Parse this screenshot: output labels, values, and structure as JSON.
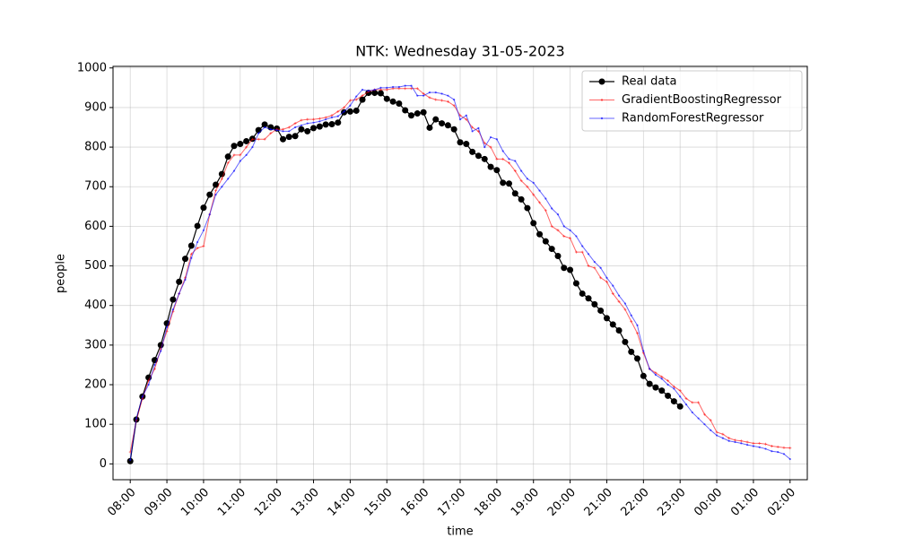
{
  "chart_data": {
    "type": "line",
    "title": "NTK: Wednesday 31-05-2023",
    "xlabel": "time",
    "ylabel": "people",
    "xlim": [
      7.53,
      26.47
    ],
    "ylim": [
      -40,
      1004
    ],
    "xticks": [
      {
        "value": 8,
        "label": "08:00"
      },
      {
        "value": 9,
        "label": "09:00"
      },
      {
        "value": 10,
        "label": "10:00"
      },
      {
        "value": 11,
        "label": "11:00"
      },
      {
        "value": 12,
        "label": "12:00"
      },
      {
        "value": 13,
        "label": "13:00"
      },
      {
        "value": 14,
        "label": "14:00"
      },
      {
        "value": 15,
        "label": "15:00"
      },
      {
        "value": 16,
        "label": "16:00"
      },
      {
        "value": 17,
        "label": "17:00"
      },
      {
        "value": 18,
        "label": "18:00"
      },
      {
        "value": 19,
        "label": "19:00"
      },
      {
        "value": 20,
        "label": "20:00"
      },
      {
        "value": 21,
        "label": "21:00"
      },
      {
        "value": 22,
        "label": "22:00"
      },
      {
        "value": 23,
        "label": "23:00"
      },
      {
        "value": 24,
        "label": "00:00"
      },
      {
        "value": 25,
        "label": "01:00"
      },
      {
        "value": 26,
        "label": "02:00"
      }
    ],
    "yticks": [
      0,
      100,
      200,
      300,
      400,
      500,
      600,
      700,
      800,
      900,
      1000
    ],
    "grid": true,
    "legend": "upper right",
    "series": [
      {
        "name": "Real data",
        "color": "#000000",
        "marker": "circle",
        "x": [
          8,
          8.167,
          8.333,
          8.5,
          8.667,
          8.833,
          9,
          9.167,
          9.333,
          9.5,
          9.667,
          9.833,
          10,
          10.167,
          10.333,
          10.5,
          10.667,
          10.833,
          11,
          11.167,
          11.333,
          11.5,
          11.667,
          11.833,
          12,
          12.167,
          12.333,
          12.5,
          12.667,
          12.833,
          13,
          13.167,
          13.333,
          13.5,
          13.667,
          13.833,
          14,
          14.167,
          14.333,
          14.5,
          14.667,
          14.833,
          15,
          15.167,
          15.333,
          15.5,
          15.667,
          15.833,
          16,
          16.167,
          16.333,
          16.5,
          16.667,
          16.833,
          17,
          17.167,
          17.333,
          17.5,
          17.667,
          17.833,
          18,
          18.167,
          18.333,
          18.5,
          18.667,
          18.833,
          19,
          19.167,
          19.333,
          19.5,
          19.667,
          19.833,
          20,
          20.167,
          20.333,
          20.5,
          20.667,
          20.833,
          21,
          21.167,
          21.333,
          21.5,
          21.667,
          21.833,
          22,
          22.167,
          22.333,
          22.5,
          22.667,
          22.833,
          23
        ],
        "values": [
          7,
          112,
          170,
          218,
          262,
          300,
          355,
          415,
          460,
          518,
          551,
          601,
          647,
          680,
          705,
          732,
          776,
          803,
          808,
          815,
          821,
          843,
          857,
          850,
          847,
          820,
          826,
          828,
          845,
          840,
          848,
          852,
          857,
          858,
          862,
          888,
          890,
          892,
          920,
          937,
          937,
          936,
          922,
          915,
          910,
          893,
          880,
          885,
          888,
          849,
          870,
          860,
          855,
          845,
          812,
          808,
          788,
          778,
          770,
          750,
          742,
          710,
          708,
          683,
          668,
          646,
          608,
          580,
          562,
          543,
          525,
          495,
          490,
          456,
          430,
          418,
          403,
          387,
          368,
          352,
          337,
          308,
          283,
          266,
          222,
          202,
          193,
          185,
          172,
          158,
          145
        ]
      },
      {
        "name": "GradientBoostingRegressor",
        "color": "#ff0000",
        "marker": "plus",
        "x": [
          8,
          8.167,
          8.333,
          8.5,
          8.667,
          8.833,
          9,
          9.167,
          9.333,
          9.5,
          9.667,
          9.833,
          10,
          10.167,
          10.333,
          10.5,
          10.667,
          10.833,
          11,
          11.167,
          11.333,
          11.5,
          11.667,
          11.833,
          12,
          12.167,
          12.333,
          12.5,
          12.667,
          12.833,
          13,
          13.167,
          13.333,
          13.5,
          13.667,
          13.833,
          14,
          14.167,
          14.333,
          14.5,
          14.667,
          14.833,
          15,
          15.167,
          15.333,
          15.5,
          15.667,
          15.833,
          16,
          16.167,
          16.333,
          16.5,
          16.667,
          16.833,
          17,
          17.167,
          17.333,
          17.5,
          17.667,
          17.833,
          18,
          18.167,
          18.333,
          18.5,
          18.667,
          18.833,
          19,
          19.167,
          19.333,
          19.5,
          19.667,
          19.833,
          20,
          20.167,
          20.333,
          20.5,
          20.667,
          20.833,
          21,
          21.167,
          21.333,
          21.5,
          21.667,
          21.833,
          22,
          22.167,
          22.333,
          22.5,
          22.667,
          22.833,
          23,
          23.167,
          23.333,
          23.5,
          23.667,
          23.833,
          24,
          24.167,
          24.333,
          24.5,
          24.667,
          24.833,
          25,
          25.167,
          25.333,
          25.5,
          25.667,
          25.833,
          26
        ],
        "values": [
          30,
          110,
          165,
          210,
          240,
          290,
          335,
          385,
          430,
          470,
          530,
          545,
          550,
          630,
          690,
          720,
          760,
          780,
          780,
          800,
          820,
          820,
          820,
          835,
          845,
          845,
          850,
          860,
          868,
          870,
          870,
          872,
          875,
          880,
          890,
          900,
          918,
          920,
          930,
          940,
          945,
          945,
          945,
          948,
          948,
          948,
          948,
          948,
          935,
          925,
          920,
          918,
          915,
          905,
          880,
          870,
          850,
          840,
          810,
          800,
          770,
          770,
          760,
          740,
          715,
          700,
          680,
          660,
          640,
          600,
          590,
          575,
          570,
          535,
          535,
          500,
          495,
          470,
          460,
          430,
          410,
          390,
          360,
          330,
          280,
          240,
          230,
          220,
          210,
          195,
          185,
          165,
          155,
          155,
          125,
          110,
          80,
          75,
          65,
          60,
          58,
          55,
          52,
          52,
          50,
          45,
          43,
          41,
          40
        ]
      },
      {
        "name": "RandomForestRegressor",
        "color": "#0000ff",
        "marker": "dot",
        "x": [
          8,
          8.167,
          8.333,
          8.5,
          8.667,
          8.833,
          9,
          9.167,
          9.333,
          9.5,
          9.667,
          9.833,
          10,
          10.167,
          10.333,
          10.5,
          10.667,
          10.833,
          11,
          11.167,
          11.333,
          11.5,
          11.667,
          11.833,
          12,
          12.167,
          12.333,
          12.5,
          12.667,
          12.833,
          13,
          13.167,
          13.333,
          13.5,
          13.667,
          13.833,
          14,
          14.167,
          14.333,
          14.5,
          14.667,
          14.833,
          15,
          15.167,
          15.333,
          15.5,
          15.667,
          15.833,
          16,
          16.167,
          16.333,
          16.5,
          16.667,
          16.833,
          17,
          17.167,
          17.333,
          17.5,
          17.667,
          17.833,
          18,
          18.167,
          18.333,
          18.5,
          18.667,
          18.833,
          19,
          19.167,
          19.333,
          19.5,
          19.667,
          19.833,
          20,
          20.167,
          20.333,
          20.5,
          20.667,
          20.833,
          21,
          21.167,
          21.333,
          21.5,
          21.667,
          21.833,
          22,
          22.167,
          22.333,
          22.5,
          22.667,
          22.833,
          23,
          23.167,
          23.333,
          23.5,
          23.667,
          23.833,
          24,
          24.167,
          24.333,
          24.5,
          24.667,
          24.833,
          25,
          25.167,
          25.333,
          25.5,
          25.667,
          25.833,
          26
        ],
        "values": [
          10,
          115,
          170,
          200,
          250,
          285,
          345,
          390,
          430,
          465,
          520,
          560,
          590,
          630,
          680,
          700,
          720,
          740,
          765,
          780,
          800,
          835,
          850,
          845,
          843,
          840,
          840,
          850,
          855,
          860,
          862,
          865,
          870,
          875,
          878,
          890,
          905,
          928,
          945,
          942,
          945,
          950,
          950,
          952,
          952,
          955,
          955,
          930,
          930,
          938,
          938,
          935,
          930,
          920,
          870,
          880,
          840,
          848,
          800,
          825,
          820,
          790,
          770,
          765,
          740,
          720,
          710,
          690,
          670,
          645,
          630,
          600,
          590,
          575,
          550,
          530,
          510,
          495,
          470,
          450,
          425,
          405,
          375,
          350,
          285,
          240,
          225,
          215,
          200,
          190,
          170,
          150,
          130,
          115,
          100,
          85,
          72,
          65,
          58,
          55,
          52,
          48,
          45,
          42,
          38,
          32,
          30,
          25,
          12
        ]
      }
    ]
  }
}
